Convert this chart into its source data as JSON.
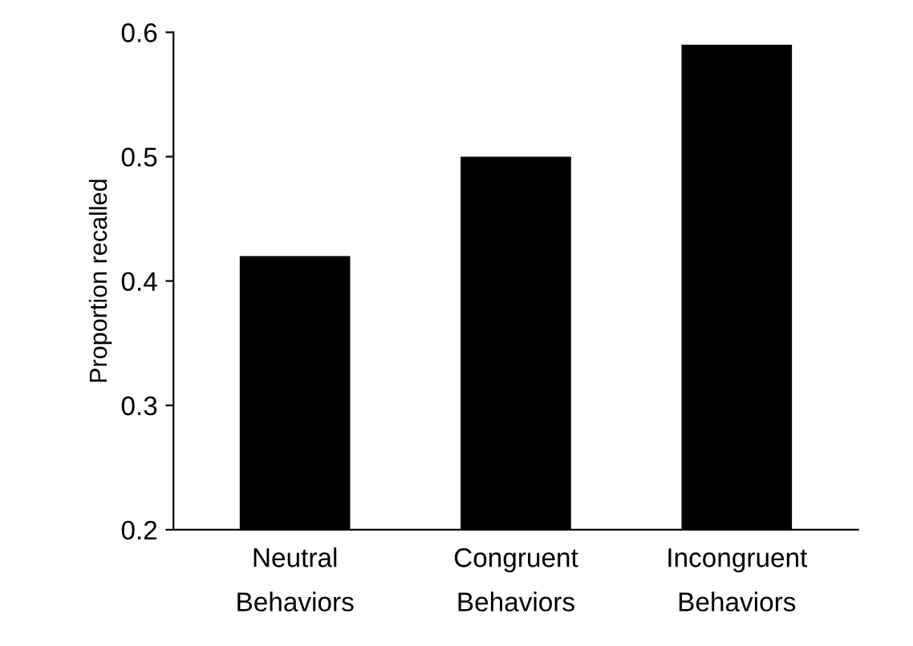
{
  "chart_data": {
    "type": "bar",
    "ylabel": "Proportion recalled",
    "categories": [
      "Neutral\nBehaviors",
      "Congruent\nBehaviors",
      "Incongruent\nBehaviors"
    ],
    "values": [
      0.42,
      0.5,
      0.59
    ],
    "color": "#000000",
    "ylim": [
      0.2,
      0.6
    ],
    "yticks": [
      0.2,
      0.3,
      0.4,
      0.5,
      0.6
    ],
    "grid": false
  }
}
